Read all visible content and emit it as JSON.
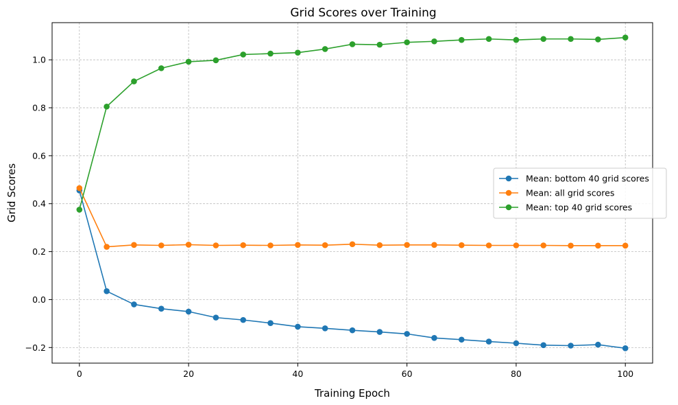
{
  "chart_data": {
    "type": "line",
    "title": "Grid Scores over Training",
    "xlabel": "Training Epoch",
    "ylabel": "Grid Scores",
    "xlim": [
      -5,
      105
    ],
    "ylim": [
      -0.265,
      1.155
    ],
    "xticks": [
      0,
      20,
      40,
      60,
      80,
      100
    ],
    "yticks": [
      -0.2,
      0.0,
      0.2,
      0.4,
      0.6,
      0.8,
      1.0
    ],
    "ytick_labels": [
      "−0.2",
      "0.0",
      "0.2",
      "0.4",
      "0.6",
      "0.8",
      "1.0"
    ],
    "grid": true,
    "legend_position": "center-right",
    "x": [
      0,
      5,
      10,
      15,
      20,
      25,
      30,
      35,
      40,
      45,
      50,
      55,
      60,
      65,
      70,
      75,
      80,
      85,
      90,
      95,
      100
    ],
    "series": [
      {
        "name": "Mean: bottom 40 grid scores",
        "color": "#1f77b4",
        "marker": "circle",
        "values": [
          0.455,
          0.035,
          -0.02,
          -0.038,
          -0.05,
          -0.075,
          -0.085,
          -0.098,
          -0.113,
          -0.12,
          -0.128,
          -0.135,
          -0.143,
          -0.16,
          -0.167,
          -0.175,
          -0.182,
          -0.19,
          -0.192,
          -0.188,
          -0.203
        ]
      },
      {
        "name": "Mean: all grid scores",
        "color": "#ff7f0e",
        "marker": "circle",
        "values": [
          0.465,
          0.22,
          0.228,
          0.226,
          0.229,
          0.226,
          0.227,
          0.226,
          0.228,
          0.227,
          0.231,
          0.227,
          0.228,
          0.228,
          0.227,
          0.226,
          0.226,
          0.226,
          0.225,
          0.225,
          0.225
        ]
      },
      {
        "name": "Mean: top 40 grid scores",
        "color": "#2ca02c",
        "marker": "circle",
        "values": [
          0.375,
          0.805,
          0.91,
          0.965,
          0.992,
          0.998,
          1.022,
          1.026,
          1.03,
          1.045,
          1.065,
          1.063,
          1.073,
          1.077,
          1.083,
          1.087,
          1.083,
          1.087,
          1.087,
          1.085,
          1.093
        ]
      }
    ]
  }
}
